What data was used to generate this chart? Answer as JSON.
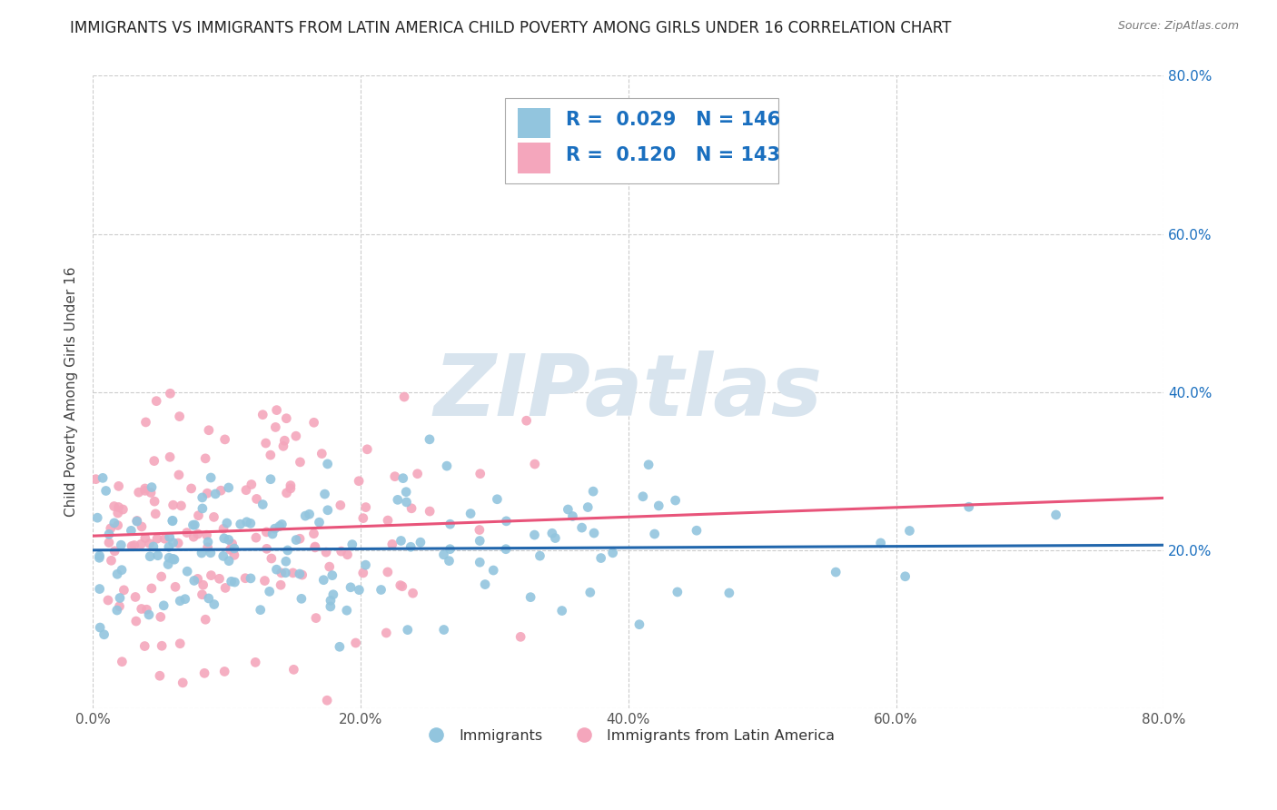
{
  "title": "IMMIGRANTS VS IMMIGRANTS FROM LATIN AMERICA CHILD POVERTY AMONG GIRLS UNDER 16 CORRELATION CHART",
  "source": "Source: ZipAtlas.com",
  "ylabel": "Child Poverty Among Girls Under 16",
  "xlim": [
    0.0,
    0.8
  ],
  "ylim": [
    0.0,
    0.8
  ],
  "ytick_values": [
    0.0,
    0.2,
    0.4,
    0.6,
    0.8
  ],
  "xtick_values": [
    0.0,
    0.2,
    0.4,
    0.6,
    0.8
  ],
  "series1_color": "#92c5de",
  "series2_color": "#f4a6bc",
  "series1_label": "Immigrants",
  "series2_label": "Immigrants from Latin America",
  "series1_R": "0.029",
  "series1_N": "146",
  "series2_R": "0.120",
  "series2_N": "143",
  "legend_color": "#1a6fbf",
  "line1_color": "#2166ac",
  "line2_color": "#e8547a",
  "watermark_color": "#d8e4ee",
  "background_color": "#ffffff",
  "grid_color": "#cccccc",
  "title_fontsize": 12,
  "axis_label_fontsize": 11,
  "tick_fontsize": 11,
  "legend_fontsize": 15,
  "n1": 146,
  "n2": 143,
  "line1_slope": 0.008,
  "line1_intercept": 0.2,
  "line2_slope": 0.06,
  "line2_intercept": 0.218
}
